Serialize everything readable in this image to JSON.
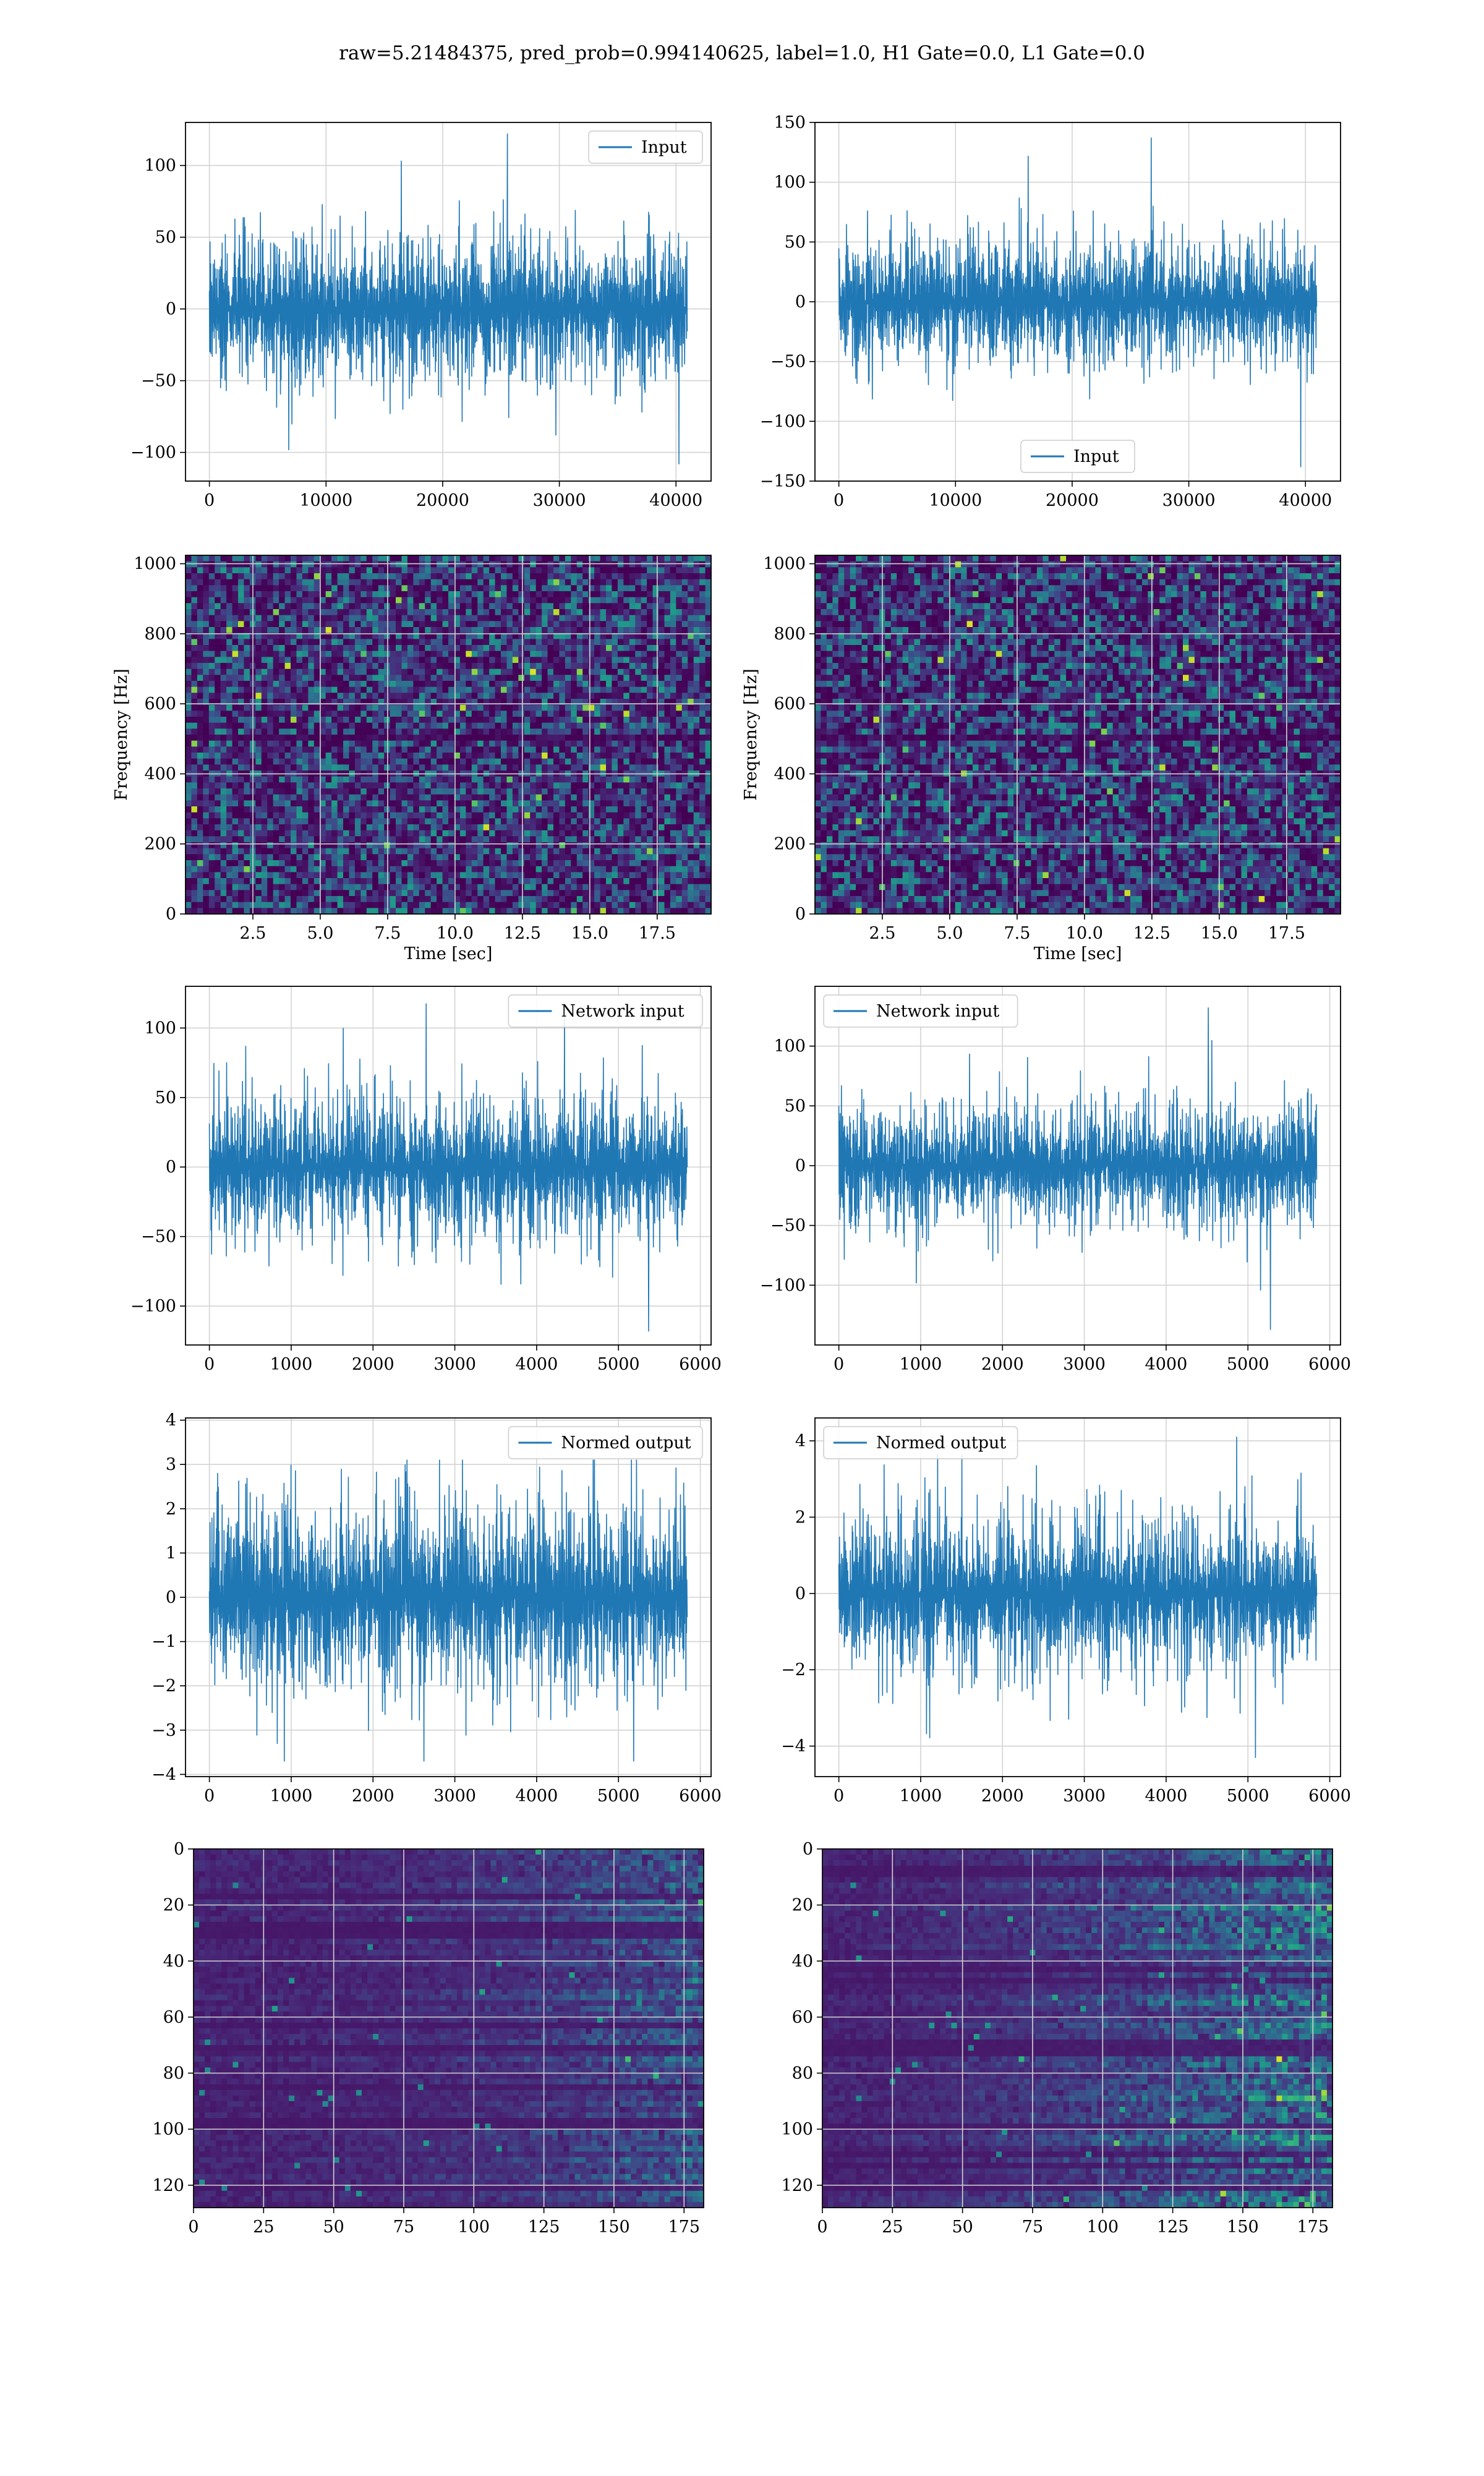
{
  "suptitle": "raw=5.21484375, pred_prob=0.994140625, label=1.0, H1 Gate=0.0, L1 Gate=0.0",
  "colors": {
    "line": "#1f77b4",
    "grid": "#d3d3d3"
  },
  "chart_data": [
    {
      "id": "input-h1",
      "type": "line",
      "title": "",
      "legend": "Input",
      "legend_position": "top-right",
      "x_range": [
        0,
        40960
      ],
      "amplitude": 22,
      "spike_max": 122,
      "spike_min": -108,
      "xlim": [
        -2048,
        43008
      ],
      "ylim": [
        -120,
        130
      ],
      "xticks": [
        0,
        10000,
        20000,
        30000,
        40000
      ],
      "yticks": [
        -100,
        -50,
        0,
        50,
        100
      ],
      "xtick_labels": [
        "0",
        "10000",
        "20000",
        "30000",
        "40000"
      ],
      "ytick_labels": [
        "−100",
        "−50",
        "0",
        "50",
        "100"
      ],
      "grid": true
    },
    {
      "id": "input-l1",
      "type": "line",
      "title": "",
      "legend": "Input",
      "legend_position": "bottom-center",
      "x_range": [
        0,
        40960
      ],
      "amplitude": 22,
      "spike_max": 137,
      "spike_min": -138,
      "xlim": [
        -2048,
        43008
      ],
      "ylim": [
        -150,
        150
      ],
      "xticks": [
        0,
        10000,
        20000,
        30000,
        40000
      ],
      "yticks": [
        -150,
        -100,
        -50,
        0,
        50,
        100,
        150
      ],
      "xtick_labels": [
        "0",
        "10000",
        "20000",
        "30000",
        "40000"
      ],
      "ytick_labels": [
        "−150",
        "−100",
        "−50",
        "0",
        "50",
        "100",
        "150"
      ],
      "grid": true
    },
    {
      "id": "spectrogram-h1",
      "type": "heatmap",
      "title": "",
      "colormap": "viridis",
      "notch_frequency_hz": 500,
      "xlabel": "Time [sec]",
      "ylabel": "Frequency [Hz]",
      "xlim": [
        0,
        19.5
      ],
      "ylim": [
        0,
        1024
      ],
      "xticks": [
        2.5,
        5.0,
        7.5,
        10.0,
        12.5,
        15.0,
        17.5
      ],
      "yticks": [
        0,
        200,
        400,
        600,
        800,
        1000
      ],
      "xtick_labels": [
        "2.5",
        "5.0",
        "7.5",
        "10.0",
        "12.5",
        "15.0",
        "17.5"
      ],
      "ytick_labels": [
        "0",
        "200",
        "400",
        "600",
        "800",
        "1000"
      ],
      "grid": true
    },
    {
      "id": "spectrogram-l1",
      "type": "heatmap",
      "title": "",
      "colormap": "viridis",
      "notch_frequency_hz": 500,
      "xlabel": "Time [sec]",
      "ylabel": "Frequency [Hz]",
      "xlim": [
        0,
        19.5
      ],
      "ylim": [
        0,
        1024
      ],
      "xticks": [
        2.5,
        5.0,
        7.5,
        10.0,
        12.5,
        15.0,
        17.5
      ],
      "yticks": [
        0,
        200,
        400,
        600,
        800,
        1000
      ],
      "xtick_labels": [
        "2.5",
        "5.0",
        "7.5",
        "10.0",
        "12.5",
        "15.0",
        "17.5"
      ],
      "ytick_labels": [
        "0",
        "200",
        "400",
        "600",
        "800",
        "1000"
      ],
      "grid": true
    },
    {
      "id": "network-input-h1",
      "type": "line",
      "title": "",
      "legend": "Network input",
      "legend_position": "top-right",
      "x_range": [
        0,
        5840
      ],
      "amplitude": 22,
      "spike_max": 118,
      "spike_min": -118,
      "xlim": [
        -292,
        6132
      ],
      "ylim": [
        -128,
        130
      ],
      "xticks": [
        0,
        1000,
        2000,
        3000,
        4000,
        5000,
        6000
      ],
      "yticks": [
        -100,
        -50,
        0,
        50,
        100
      ],
      "xtick_labels": [
        "0",
        "1000",
        "2000",
        "3000",
        "4000",
        "5000",
        "6000"
      ],
      "ytick_labels": [
        "−100",
        "−50",
        "0",
        "50",
        "100"
      ],
      "grid": true
    },
    {
      "id": "network-input-l1",
      "type": "line",
      "title": "",
      "legend": "Network input",
      "legend_position": "top-left",
      "x_range": [
        0,
        5840
      ],
      "amplitude": 22,
      "spike_max": 132,
      "spike_min": -137,
      "xlim": [
        -292,
        6132
      ],
      "ylim": [
        -150,
        150
      ],
      "xticks": [
        0,
        1000,
        2000,
        3000,
        4000,
        5000,
        6000
      ],
      "yticks": [
        -100,
        -50,
        0,
        50,
        100
      ],
      "xtick_labels": [
        "0",
        "1000",
        "2000",
        "3000",
        "4000",
        "5000",
        "6000"
      ],
      "ytick_labels": [
        "−100",
        "−50",
        "0",
        "50",
        "100"
      ],
      "grid": true
    },
    {
      "id": "normed-output-h1",
      "type": "line",
      "title": "",
      "legend": "Normed output",
      "legend_position": "top-right",
      "x_range": [
        0,
        5840
      ],
      "amplitude": 0.9,
      "spike_max": 3.1,
      "spike_min": -3.7,
      "xlim": [
        -292,
        6132
      ],
      "ylim": [
        -4.05,
        4.05
      ],
      "xticks": [
        0,
        1000,
        2000,
        3000,
        4000,
        5000,
        6000
      ],
      "yticks": [
        -4,
        -3,
        -2,
        -1,
        0,
        1,
        2,
        3,
        4
      ],
      "xtick_labels": [
        "0",
        "1000",
        "2000",
        "3000",
        "4000",
        "5000",
        "6000"
      ],
      "ytick_labels": [
        "−4",
        "−3",
        "−2",
        "−1",
        "0",
        "1",
        "2",
        "3",
        "4"
      ],
      "grid": true
    },
    {
      "id": "normed-output-l1",
      "type": "line",
      "title": "",
      "legend": "Normed output",
      "legend_position": "top-left",
      "x_range": [
        0,
        5840
      ],
      "amplitude": 0.9,
      "spike_max": 4.1,
      "spike_min": -4.3,
      "xlim": [
        -292,
        6132
      ],
      "ylim": [
        -4.8,
        4.6
      ],
      "xticks": [
        0,
        1000,
        2000,
        3000,
        4000,
        5000,
        6000
      ],
      "yticks": [
        -4,
        -2,
        0,
        2,
        4
      ],
      "xtick_labels": [
        "0",
        "1000",
        "2000",
        "3000",
        "4000",
        "5000",
        "6000"
      ],
      "ytick_labels": [
        "−4",
        "−2",
        "0",
        "2",
        "4"
      ],
      "grid": true
    },
    {
      "id": "feature-map-h1",
      "type": "heatmap",
      "title": "",
      "colormap": "viridis",
      "rows": 128,
      "columns": 182,
      "xlim": [
        0,
        182
      ],
      "ylim": [
        128,
        0
      ],
      "xticks": [
        0,
        25,
        50,
        75,
        100,
        125,
        150,
        175
      ],
      "yticks": [
        0,
        20,
        40,
        60,
        80,
        100,
        120
      ],
      "xtick_labels": [
        "0",
        "25",
        "50",
        "75",
        "100",
        "125",
        "150",
        "175"
      ],
      "ytick_labels": [
        "0",
        "20",
        "40",
        "60",
        "80",
        "100",
        "120"
      ],
      "grid": true
    },
    {
      "id": "feature-map-l1",
      "type": "heatmap",
      "title": "",
      "colormap": "viridis",
      "rows": 128,
      "columns": 182,
      "xlim": [
        0,
        182
      ],
      "ylim": [
        128,
        0
      ],
      "xticks": [
        0,
        25,
        50,
        75,
        100,
        125,
        150,
        175
      ],
      "yticks": [
        0,
        20,
        40,
        60,
        80,
        100,
        120
      ],
      "xtick_labels": [
        "0",
        "25",
        "50",
        "75",
        "100",
        "125",
        "150",
        "175"
      ],
      "ytick_labels": [
        "0",
        "20",
        "40",
        "60",
        "80",
        "100",
        "120"
      ],
      "grid": true
    }
  ]
}
